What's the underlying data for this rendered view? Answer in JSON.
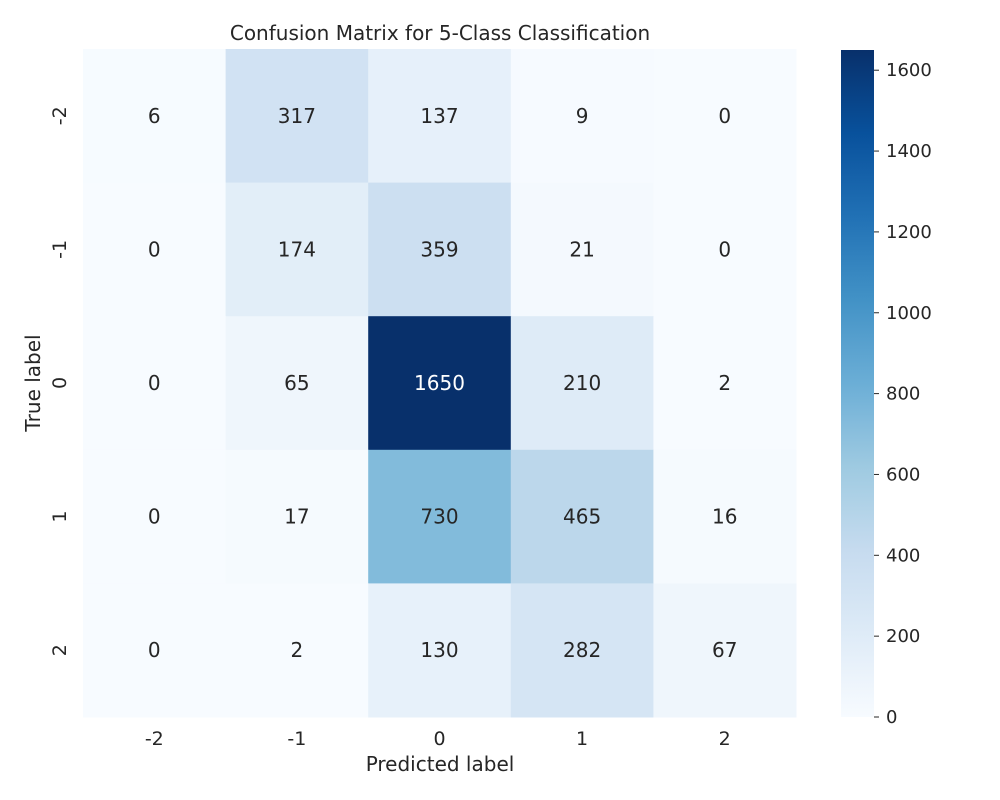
{
  "chart_data": {
    "type": "heatmap",
    "title": "Confusion Matrix for 5-Class Classification",
    "xlabel": "Predicted label",
    "ylabel": "True label",
    "x_categories": [
      "-2",
      "-1",
      "0",
      "1",
      "2"
    ],
    "y_categories": [
      "-2",
      "-1",
      "0",
      "1",
      "2"
    ],
    "values": [
      [
        6,
        317,
        137,
        9,
        0
      ],
      [
        0,
        174,
        359,
        21,
        0
      ],
      [
        0,
        65,
        1650,
        210,
        2
      ],
      [
        0,
        17,
        730,
        465,
        16
      ],
      [
        0,
        2,
        130,
        282,
        67
      ]
    ],
    "colormap": "Blues",
    "color_range": [
      0,
      1650
    ],
    "colorbar_ticks": [
      "0",
      "200",
      "400",
      "600",
      "800",
      "1000",
      "1200",
      "1400",
      "1600"
    ],
    "colorbar_tick_values": [
      0,
      200,
      400,
      600,
      800,
      1000,
      1200,
      1400,
      1600
    ],
    "annotations": true,
    "grid": false
  }
}
